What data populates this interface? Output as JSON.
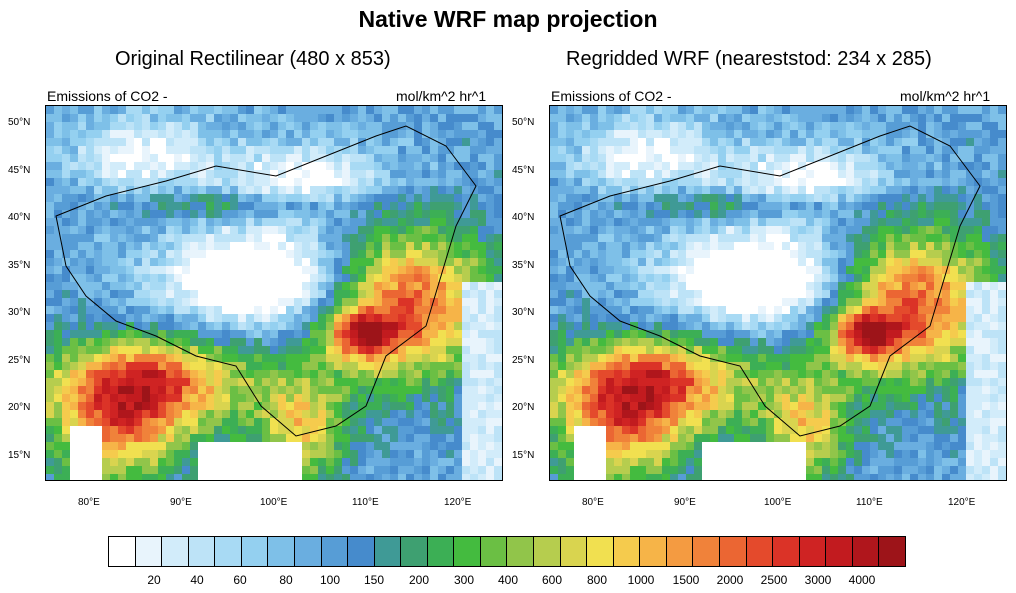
{
  "title": "Native WRF map projection",
  "panels": [
    {
      "title": "Original Rectilinear (480 x 853)",
      "left_label": "Emissions of CO2 -",
      "right_label": "mol/km^2 hr^1"
    },
    {
      "title": "Regridded WRF (neareststod: 234 x 285)",
      "left_label": "Emissions of CO2 -",
      "right_label": "mol/km^2 hr^1"
    }
  ],
  "lat_ticks": [
    "50°N",
    "45°N",
    "40°N",
    "35°N",
    "30°N",
    "25°N",
    "20°N",
    "15°N"
  ],
  "lon_ticks": [
    "80°E",
    "90°E",
    "100°E",
    "110°E",
    "120°E"
  ],
  "colorbar": {
    "colors": [
      "#ffffff",
      "#e8f4fc",
      "#d2ecfa",
      "#bde3f7",
      "#a8daf4",
      "#94d0f0",
      "#7ec0e8",
      "#6aaee0",
      "#579dd6",
      "#468bcc",
      "#3f9a96",
      "#3ea071",
      "#3caf55",
      "#44bb3f",
      "#6bbf44",
      "#91c54a",
      "#b6cd4e",
      "#d9d44f",
      "#f1e050",
      "#f5cb4d",
      "#f6b448",
      "#f49b41",
      "#f0823a",
      "#eb6633",
      "#e44a2c",
      "#db3327",
      "#cf2323",
      "#c21b1f",
      "#b0161c",
      "#9d1419"
    ],
    "labels": [
      "20",
      "40",
      "60",
      "80",
      "100",
      "150",
      "200",
      "300",
      "400",
      "600",
      "800",
      "1000",
      "1500",
      "2000",
      "2500",
      "3000",
      "4000"
    ]
  }
}
